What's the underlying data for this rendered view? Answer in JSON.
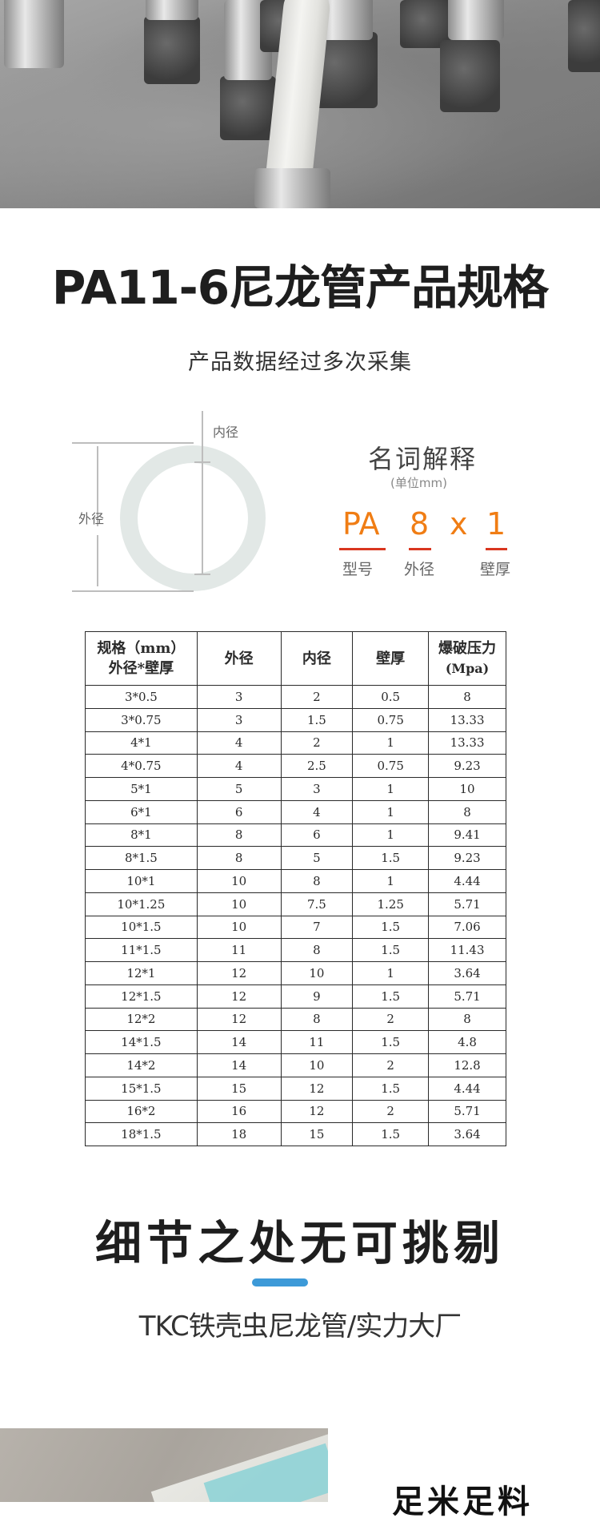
{
  "hero": {
    "image_desc": "PA11 nylon tube with stainless steel compression fittings on concrete surface"
  },
  "spec_section": {
    "title": "PA11-6尼龙管产品规格",
    "subtitle": "产品数据经过多次采集"
  },
  "diagram": {
    "inner_diameter_label": "内径",
    "outer_diameter_label": "外径"
  },
  "glossary": {
    "title": "名词解释",
    "unit": "(单位mm)",
    "code_model": "PA",
    "code_outer": "8",
    "code_x": "x",
    "code_wall": "1",
    "label_model": "型号",
    "label_outer": "外径",
    "label_wall": "壁厚",
    "accent_color": "#f07d14",
    "underline_color": "#d9361f"
  },
  "table": {
    "headers": {
      "spec_line1": "规格（mm）",
      "spec_line2": "外径*壁厚",
      "outer": "外径",
      "inner": "内径",
      "wall": "壁厚",
      "burst_line1": "爆破压力",
      "burst_line2": "(Mpa)"
    },
    "rows": [
      [
        "3*0.5",
        "3",
        "2",
        "0.5",
        "8"
      ],
      [
        "3*0.75",
        "3",
        "1.5",
        "0.75",
        "13.33"
      ],
      [
        "4*1",
        "4",
        "2",
        "1",
        "13.33"
      ],
      [
        "4*0.75",
        "4",
        "2.5",
        "0.75",
        "9.23"
      ],
      [
        "5*1",
        "5",
        "3",
        "1",
        "10"
      ],
      [
        "6*1",
        "6",
        "4",
        "1",
        "8"
      ],
      [
        "8*1",
        "8",
        "6",
        "1",
        "9.41"
      ],
      [
        "8*1.5",
        "8",
        "5",
        "1.5",
        "9.23"
      ],
      [
        "10*1",
        "10",
        "8",
        "1",
        "4.44"
      ],
      [
        "10*1.25",
        "10",
        "7.5",
        "1.25",
        "5.71"
      ],
      [
        "10*1.5",
        "10",
        "7",
        "1.5",
        "7.06"
      ],
      [
        "11*1.5",
        "11",
        "8",
        "1.5",
        "11.43"
      ],
      [
        "12*1",
        "12",
        "10",
        "1",
        "3.64"
      ],
      [
        "12*1.5",
        "12",
        "9",
        "1.5",
        "5.71"
      ],
      [
        "12*2",
        "12",
        "8",
        "2",
        "8"
      ],
      [
        "14*1.5",
        "14",
        "11",
        "1.5",
        "4.8"
      ],
      [
        "14*2",
        "14",
        "10",
        "2",
        "12.8"
      ],
      [
        "15*1.5",
        "15",
        "12",
        "1.5",
        "4.44"
      ],
      [
        "16*2",
        "16",
        "12",
        "2",
        "5.71"
      ],
      [
        "18*1.5",
        "18",
        "15",
        "1.5",
        "3.64"
      ]
    ]
  },
  "detail_section": {
    "title": "细节之处无可挑剔",
    "subtitle": "TKC铁壳虫尼龙管/实力大厂",
    "accent_color": "#3d9ad8"
  },
  "bottom_section": {
    "title": "足米足料"
  }
}
